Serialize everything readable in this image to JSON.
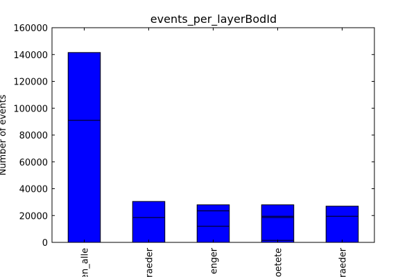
{
  "chart_data": {
    "type": "bar",
    "title": "events_per_layerBodId",
    "xlabel": "",
    "ylabel": "Number of events",
    "ylim": [
      0,
      160000
    ],
    "yticks": [
      0,
      20000,
      40000,
      60000,
      80000,
      100000,
      120000,
      140000,
      160000
    ],
    "categories": [
      "en_alle",
      "raeder",
      "enger",
      "oetete",
      "raeder"
    ],
    "values": [
      141500,
      30500,
      28000,
      28000,
      27000
    ],
    "segment_lines": [
      [
        91000
      ],
      [
        18500
      ],
      [
        12000,
        23500
      ],
      [
        1500,
        18500,
        19500
      ],
      [
        19500
      ]
    ],
    "bar_color": "#0000ff",
    "edge_color": "#000000",
    "grid": false,
    "legend": "none"
  }
}
